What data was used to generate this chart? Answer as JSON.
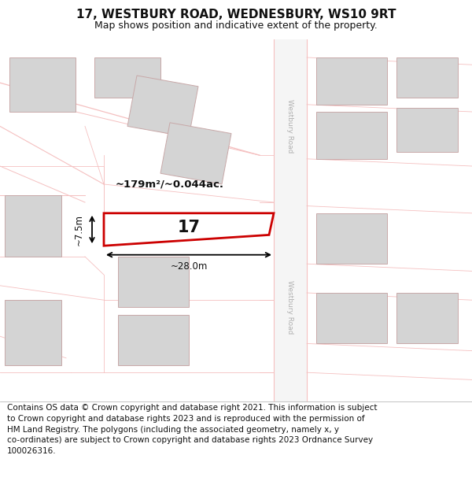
{
  "title": "17, WESTBURY ROAD, WEDNESBURY, WS10 9RT",
  "subtitle": "Map shows position and indicative extent of the property.",
  "footer_line1": "Contains OS data © Crown copyright and database right 2021. This information is subject",
  "footer_line2": "to Crown copyright and database rights 2023 and is reproduced with the permission of",
  "footer_line3": "HM Land Registry. The polygons (including the associated geometry, namely x, y",
  "footer_line4": "co-ordinates) are subject to Crown copyright and database rights 2023 Ordnance Survey",
  "footer_line5": "100026316.",
  "bg_color": "#ffffff",
  "map_bg": "#ffffff",
  "road_color": "#f5c0c0",
  "building_color": "#d4d4d4",
  "building_edge": "#c8a8a8",
  "highlight_color": "#cc0000",
  "road_label": "Westbury Road",
  "area_label": "~179m²/~0.044ac.",
  "width_label": "~28.0m",
  "height_label": "~7.5m",
  "number_label": "17",
  "title_fontsize": 11,
  "subtitle_fontsize": 9,
  "footer_fontsize": 7.5
}
